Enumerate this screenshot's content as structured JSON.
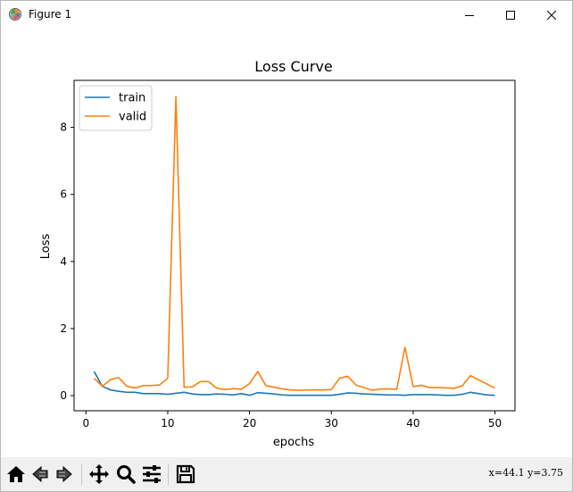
{
  "window": {
    "title": "Figure 1",
    "controls": [
      "minimize",
      "maximize",
      "close"
    ]
  },
  "toolbar": {
    "buttons": [
      {
        "name": "home-icon"
      },
      {
        "name": "back-icon"
      },
      {
        "name": "forward-icon"
      },
      {
        "name": "pan-icon"
      },
      {
        "name": "zoom-icon"
      },
      {
        "name": "subplots-icon"
      },
      {
        "name": "save-icon"
      }
    ],
    "coords_text": "x=44.1 y=3.75"
  },
  "chart_data": {
    "type": "line",
    "title": "Loss Curve",
    "xlabel": "epochs",
    "ylabel": "Loss",
    "xlim": [
      -1.45,
      52.45
    ],
    "ylim": [
      -0.45,
      9.4
    ],
    "xticks": [
      0,
      10,
      20,
      30,
      40,
      50
    ],
    "yticks": [
      0,
      2,
      4,
      6,
      8
    ],
    "legend": "top-left",
    "grid": false,
    "x": [
      1,
      2,
      3,
      4,
      5,
      6,
      7,
      8,
      9,
      10,
      11,
      12,
      13,
      14,
      15,
      16,
      17,
      18,
      19,
      20,
      21,
      22,
      23,
      24,
      25,
      26,
      27,
      28,
      29,
      30,
      31,
      32,
      33,
      34,
      35,
      36,
      37,
      38,
      39,
      40,
      41,
      42,
      43,
      44,
      45,
      46,
      47,
      48,
      49,
      50
    ],
    "series": [
      {
        "name": "train",
        "color": "#1f77b4",
        "values": [
          0.72,
          0.28,
          0.17,
          0.13,
          0.1,
          0.1,
          0.06,
          0.06,
          0.06,
          0.04,
          0.07,
          0.1,
          0.05,
          0.03,
          0.03,
          0.05,
          0.04,
          0.02,
          0.06,
          0.01,
          0.09,
          0.07,
          0.05,
          0.02,
          0.01,
          0.01,
          0.01,
          0.01,
          0.01,
          0.01,
          0.04,
          0.08,
          0.07,
          0.05,
          0.04,
          0.03,
          0.02,
          0.02,
          0.01,
          0.03,
          0.03,
          0.03,
          0.02,
          0.01,
          0.01,
          0.04,
          0.1,
          0.06,
          0.02,
          0.01
        ]
      },
      {
        "name": "valid",
        "color": "#ff7f0e",
        "values": [
          0.52,
          0.28,
          0.48,
          0.54,
          0.28,
          0.23,
          0.3,
          0.3,
          0.32,
          0.52,
          8.92,
          0.25,
          0.26,
          0.42,
          0.42,
          0.22,
          0.18,
          0.21,
          0.19,
          0.36,
          0.72,
          0.3,
          0.25,
          0.2,
          0.17,
          0.16,
          0.17,
          0.17,
          0.17,
          0.18,
          0.52,
          0.58,
          0.32,
          0.24,
          0.16,
          0.2,
          0.2,
          0.19,
          1.44,
          0.27,
          0.31,
          0.24,
          0.24,
          0.23,
          0.22,
          0.29,
          0.6,
          0.47,
          0.35,
          0.22
        ]
      }
    ]
  }
}
